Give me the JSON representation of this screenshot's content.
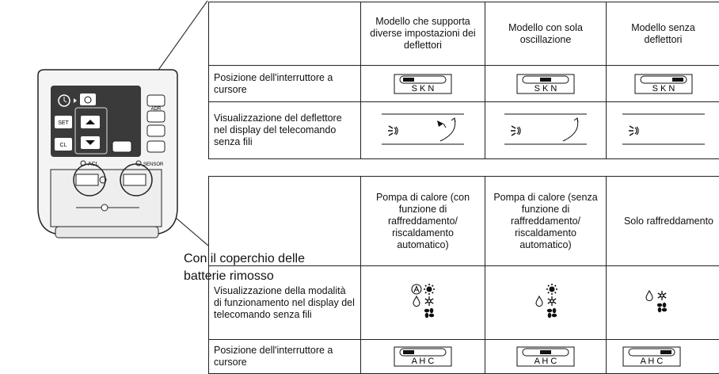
{
  "remote": {
    "buttons": {
      "set": "SET",
      "cl": "CL",
      "adr": "ADR",
      "acl": "ACL",
      "sensor": "SENSOR"
    },
    "caption": "Con il coperchio delle batterie rimosso"
  },
  "table1": {
    "columns": [
      "Modello che supporta diverse impostazioni dei deflettori",
      "Modello con sola oscillazione",
      "Modello senza deflettori"
    ],
    "rows": [
      {
        "label": "Posizione dell'interruttore a cursore",
        "switch_letters": "S K N"
      },
      {
        "label": "Visualizzazione del deflettore nel display del telecomando senza fili"
      }
    ]
  },
  "table2": {
    "columns": [
      "Pompa di calore (con funzione di raffreddamento/ riscaldamento automatico)",
      "Pompa di calore (senza funzione di raffreddamento/ riscaldamento automatico)",
      "Solo raffreddamento"
    ],
    "rows": [
      {
        "label": "Visualizzazione della modalità di funzionamento nel display del telecomando senza fili"
      },
      {
        "label": "Posizione dell'interruttore a cursore",
        "switch_letters": "A H C"
      }
    ]
  }
}
